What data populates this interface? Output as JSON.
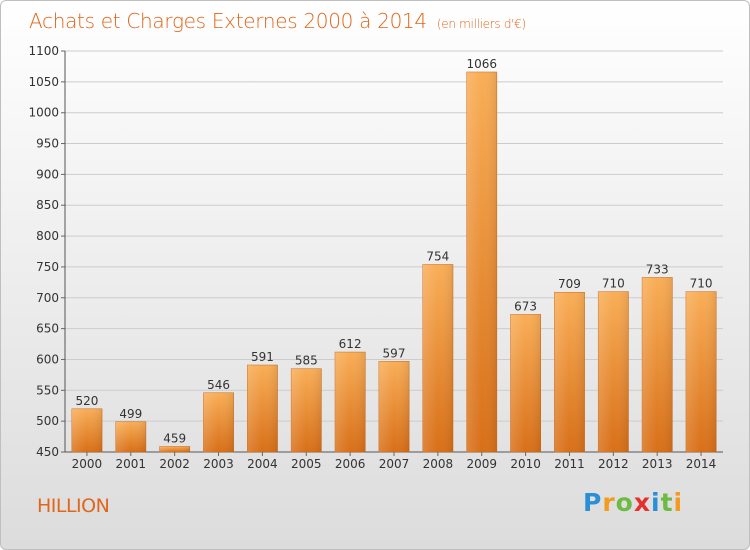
{
  "header": {
    "title": "Achats et Charges Externes 2000 à 2014",
    "subtitle": "(en milliers d'€)"
  },
  "footer": {
    "commune": "HILLION",
    "logo_text": "Proxiti",
    "logo_letters": [
      {
        "ch": "P",
        "color": "#2a8fd6"
      },
      {
        "ch": "r",
        "color": "#f29b1f"
      },
      {
        "ch": "o",
        "color": "#6dbb45"
      },
      {
        "ch": "x",
        "color": "#e5302e"
      },
      {
        "ch": "i",
        "color": "#2a8fd6"
      },
      {
        "ch": "t",
        "color": "#6dbb45"
      },
      {
        "ch": "i",
        "color": "#f29b1f"
      }
    ]
  },
  "colors": {
    "accent": "#e0661a",
    "bar_light": "#f7a94f",
    "bar_dark": "#d9711a",
    "grid": "#c8c8c8"
  },
  "chart_data": {
    "type": "bar",
    "title": "Achats et Charges Externes 2000 à 2014",
    "subtitle": "(en milliers d'€)",
    "xlabel": "",
    "ylabel": "",
    "ylim": [
      450,
      1100
    ],
    "yticks": [
      450,
      500,
      550,
      600,
      650,
      700,
      750,
      800,
      850,
      900,
      950,
      1000,
      1050,
      1100
    ],
    "grid": true,
    "categories": [
      "2000",
      "2001",
      "2002",
      "2003",
      "2004",
      "2005",
      "2006",
      "2007",
      "2008",
      "2009",
      "2010",
      "2011",
      "2012",
      "2013",
      "2014"
    ],
    "values": [
      520,
      499,
      459,
      546,
      591,
      585,
      612,
      597,
      754,
      1066,
      673,
      709,
      710,
      733,
      710
    ]
  }
}
